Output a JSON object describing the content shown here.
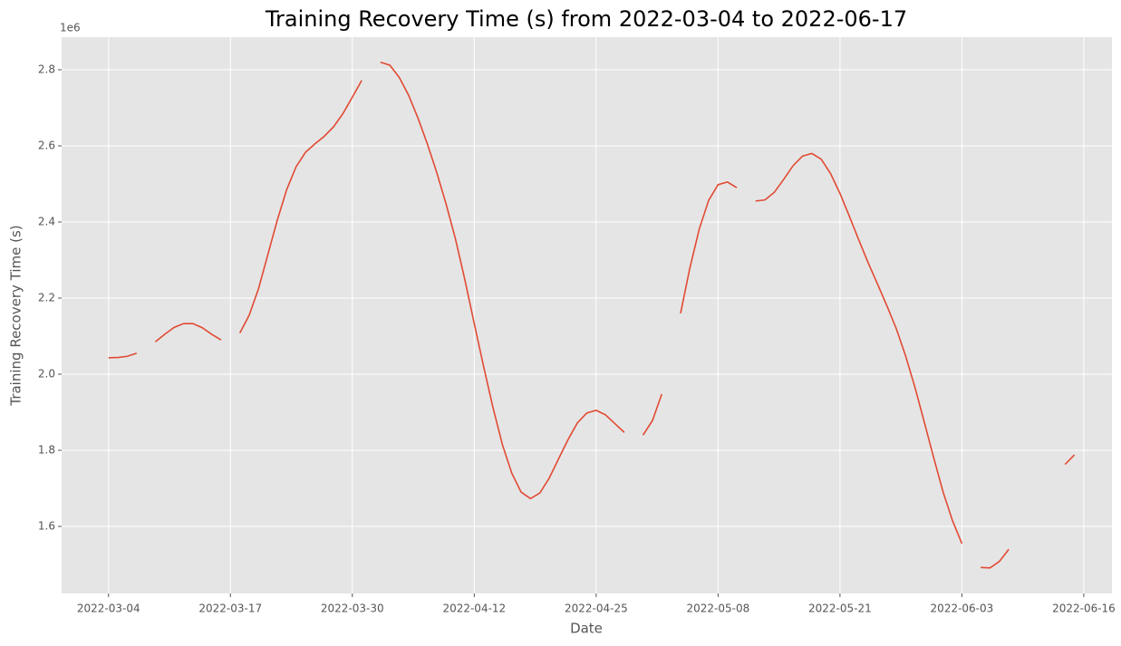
{
  "chart_data": {
    "type": "line",
    "title": "Training Recovery Time (s) from 2022-03-04 to 2022-06-17",
    "x_label": "Date",
    "y_label": "Training Recovery Time (s)",
    "y_offset_label": "1e6",
    "x": [
      "2022-03-04",
      "2022-03-05",
      "2022-03-06",
      "2022-03-07",
      "2022-03-08",
      "2022-03-09",
      "2022-03-10",
      "2022-03-11",
      "2022-03-12",
      "2022-03-13",
      "2022-03-14",
      "2022-03-15",
      "2022-03-16",
      "2022-03-17",
      "2022-03-18",
      "2022-03-19",
      "2022-03-20",
      "2022-03-21",
      "2022-03-22",
      "2022-03-23",
      "2022-03-24",
      "2022-03-25",
      "2022-03-26",
      "2022-03-27",
      "2022-03-28",
      "2022-03-29",
      "2022-03-30",
      "2022-03-31",
      "2022-04-01",
      "2022-04-02",
      "2022-04-03",
      "2022-04-04",
      "2022-04-05",
      "2022-04-06",
      "2022-04-07",
      "2022-04-08",
      "2022-04-09",
      "2022-04-10",
      "2022-04-11",
      "2022-04-12",
      "2022-04-13",
      "2022-04-14",
      "2022-04-15",
      "2022-04-16",
      "2022-04-17",
      "2022-04-18",
      "2022-04-19",
      "2022-04-20",
      "2022-04-21",
      "2022-04-22",
      "2022-04-23",
      "2022-04-24",
      "2022-04-25",
      "2022-04-26",
      "2022-04-27",
      "2022-04-28",
      "2022-04-29",
      "2022-04-30",
      "2022-05-01",
      "2022-05-02",
      "2022-05-03",
      "2022-05-04",
      "2022-05-05",
      "2022-05-06",
      "2022-05-07",
      "2022-05-08",
      "2022-05-09",
      "2022-05-10",
      "2022-05-11",
      "2022-05-12",
      "2022-05-13",
      "2022-05-14",
      "2022-05-15",
      "2022-05-16",
      "2022-05-17",
      "2022-05-18",
      "2022-05-19",
      "2022-05-20",
      "2022-05-21",
      "2022-05-22",
      "2022-05-23",
      "2022-05-24",
      "2022-05-25",
      "2022-05-26",
      "2022-05-27",
      "2022-05-28",
      "2022-05-29",
      "2022-05-30",
      "2022-05-31",
      "2022-06-01",
      "2022-06-02",
      "2022-06-03",
      "2022-06-04",
      "2022-06-05",
      "2022-06-06",
      "2022-06-07",
      "2022-06-08",
      "2022-06-09",
      "2022-06-10",
      "2022-06-11",
      "2022-06-12",
      "2022-06-13",
      "2022-06-14",
      "2022-06-15",
      "2022-06-16",
      "2022-06-17"
    ],
    "series": [
      {
        "name": "Training Recovery Time (s)",
        "color": "#e24a33",
        "values": [
          2043000,
          2044000,
          2047000,
          2055000,
          null,
          2085000,
          2105000,
          2123000,
          2133000,
          2133000,
          2122000,
          2105000,
          2090000,
          null,
          2108000,
          2155000,
          2225000,
          2315000,
          2405000,
          2485000,
          2545000,
          2583000,
          2605000,
          2625000,
          2650000,
          2685000,
          2728000,
          2772000,
          null,
          2820000,
          2812000,
          2780000,
          2733000,
          2673000,
          2605000,
          2530000,
          2447000,
          2355000,
          2248000,
          2133000,
          2020000,
          1912000,
          1815000,
          1740000,
          1690000,
          1673000,
          1688000,
          1727000,
          1778000,
          1828000,
          1872000,
          1898000,
          1905000,
          1893000,
          1870000,
          1847000,
          null,
          1840000,
          1878000,
          1948000,
          null,
          2160000,
          2280000,
          2382000,
          2457000,
          2498000,
          2505000,
          2490000,
          null,
          2455000,
          2458000,
          2478000,
          2512000,
          2548000,
          2573000,
          2580000,
          2565000,
          2527000,
          2475000,
          2415000,
          2353000,
          2293000,
          2237000,
          2180000,
          2120000,
          2048000,
          1965000,
          1873000,
          1780000,
          1690000,
          1615000,
          1555000,
          null,
          1492000,
          1491000,
          1508000,
          1540000,
          null,
          null,
          null,
          null,
          null,
          1763000,
          1788000,
          null,
          null
        ]
      }
    ],
    "xlim": [
      "2022-02-27",
      "2022-06-19"
    ],
    "xticks": [
      "2022-03-04",
      "2022-03-17",
      "2022-03-30",
      "2022-04-12",
      "2022-04-25",
      "2022-05-08",
      "2022-05-21",
      "2022-06-03",
      "2022-06-16"
    ],
    "ylim": [
      1423800,
      2885700
    ],
    "yticks": [
      {
        "value": 1600000,
        "label": "1.6"
      },
      {
        "value": 1800000,
        "label": "1.8"
      },
      {
        "value": 2000000,
        "label": "2.0"
      },
      {
        "value": 2200000,
        "label": "2.2"
      },
      {
        "value": 2400000,
        "label": "2.4"
      },
      {
        "value": 2600000,
        "label": "2.6"
      },
      {
        "value": 2800000,
        "label": "2.8"
      }
    ],
    "grid": true
  }
}
